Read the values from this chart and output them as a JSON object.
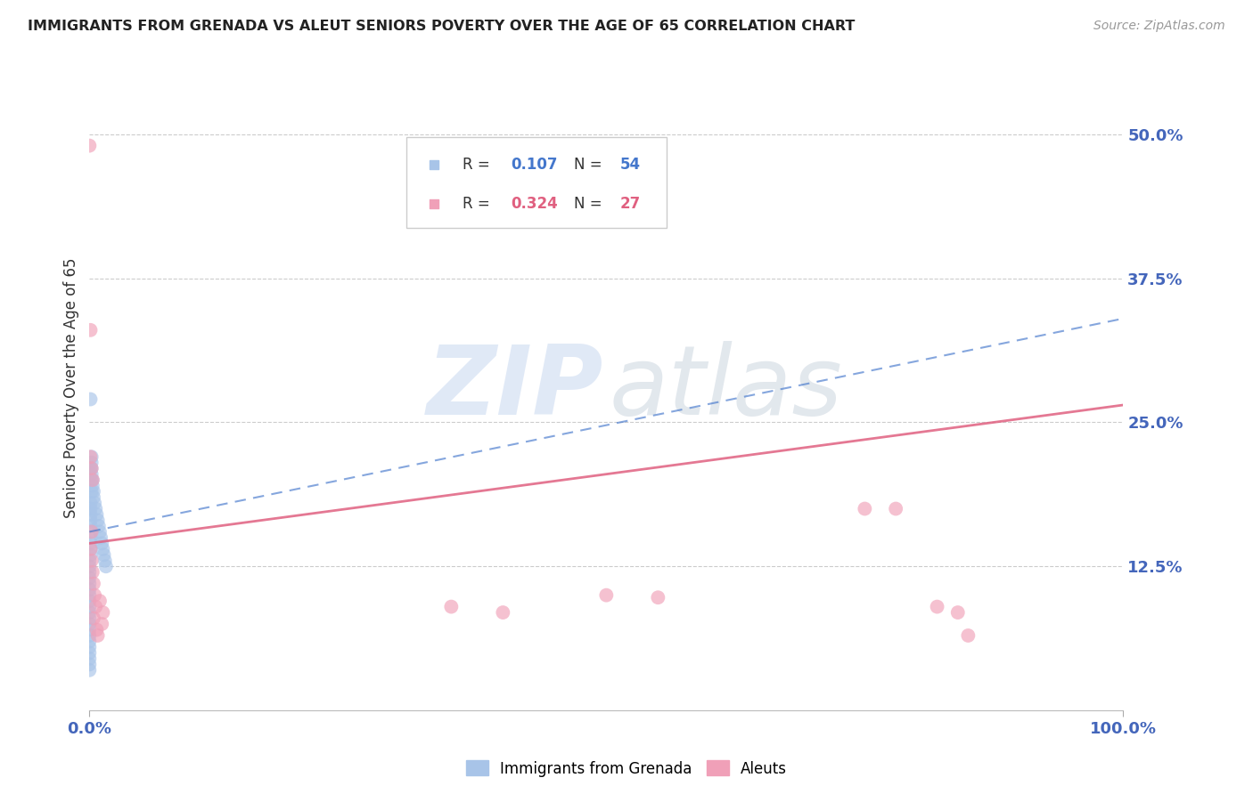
{
  "title": "IMMIGRANTS FROM GRENADA VS ALEUT SENIORS POVERTY OVER THE AGE OF 65 CORRELATION CHART",
  "source": "Source: ZipAtlas.com",
  "ylabel": "Seniors Poverty Over the Age of 65",
  "y_ticks": [
    0.125,
    0.25,
    0.375,
    0.5
  ],
  "y_tick_labels": [
    "12.5%",
    "25.0%",
    "37.5%",
    "50.0%"
  ],
  "x_range": [
    0.0,
    1.0
  ],
  "y_range": [
    0.0,
    0.56
  ],
  "blue_color": "#a8c4e8",
  "pink_color": "#f0a0b8",
  "blue_line_color": "#4477cc",
  "pink_line_color": "#e06080",
  "axis_label_color": "#4466bb",
  "title_color": "#222222",
  "blue_trendline_x": [
    0.0,
    1.0
  ],
  "blue_trendline_y": [
    0.155,
    0.34
  ],
  "pink_trendline_x": [
    0.0,
    1.0
  ],
  "pink_trendline_y": [
    0.145,
    0.265
  ],
  "blue_points_x": [
    0.0,
    0.0,
    0.0,
    0.0,
    0.0,
    0.0,
    0.0,
    0.0,
    0.0,
    0.0,
    0.0,
    0.0,
    0.0,
    0.0,
    0.0,
    0.0,
    0.0,
    0.0,
    0.0,
    0.0,
    0.001,
    0.001,
    0.001,
    0.001,
    0.001,
    0.001,
    0.001,
    0.001,
    0.001,
    0.001,
    0.001,
    0.001,
    0.002,
    0.002,
    0.002,
    0.002,
    0.002,
    0.002,
    0.003,
    0.003,
    0.004,
    0.004,
    0.005,
    0.006,
    0.007,
    0.008,
    0.009,
    0.01,
    0.011,
    0.012,
    0.013,
    0.014,
    0.015,
    0.016
  ],
  "blue_points_y": [
    0.035,
    0.04,
    0.045,
    0.05,
    0.055,
    0.06,
    0.065,
    0.07,
    0.075,
    0.08,
    0.085,
    0.09,
    0.095,
    0.1,
    0.105,
    0.11,
    0.115,
    0.12,
    0.125,
    0.13,
    0.135,
    0.14,
    0.145,
    0.15,
    0.155,
    0.16,
    0.165,
    0.17,
    0.175,
    0.18,
    0.21,
    0.27,
    0.19,
    0.2,
    0.205,
    0.21,
    0.215,
    0.22,
    0.195,
    0.2,
    0.185,
    0.19,
    0.18,
    0.175,
    0.17,
    0.165,
    0.16,
    0.155,
    0.15,
    0.145,
    0.14,
    0.135,
    0.13,
    0.125
  ],
  "pink_points_x": [
    0.0,
    0.001,
    0.001,
    0.001,
    0.002,
    0.002,
    0.002,
    0.003,
    0.003,
    0.004,
    0.004,
    0.005,
    0.006,
    0.007,
    0.008,
    0.01,
    0.012,
    0.013,
    0.35,
    0.4,
    0.5,
    0.55,
    0.75,
    0.78,
    0.82,
    0.84,
    0.85
  ],
  "pink_points_y": [
    0.49,
    0.33,
    0.22,
    0.14,
    0.21,
    0.155,
    0.13,
    0.2,
    0.12,
    0.11,
    0.08,
    0.1,
    0.09,
    0.07,
    0.065,
    0.095,
    0.075,
    0.085,
    0.09,
    0.085,
    0.1,
    0.098,
    0.175,
    0.175,
    0.09,
    0.085,
    0.065
  ],
  "legend_items": [
    {
      "r": "0.107",
      "n": "54",
      "color_key": "blue"
    },
    {
      "r": "0.324",
      "n": "27",
      "color_key": "pink"
    }
  ]
}
